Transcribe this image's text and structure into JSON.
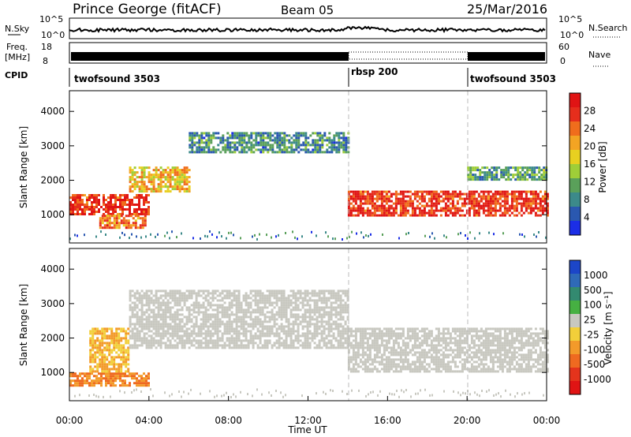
{
  "header": {
    "title": "Prince George (fitACF)",
    "beam": "Beam 05",
    "date": "25/Mar/2016"
  },
  "top_panels": {
    "nsky_label": "N.Sky",
    "nsky_ticks": [
      "10^5",
      "10^0"
    ],
    "nsearch_label": "N.Search",
    "nsearch_ticks": [
      "10^5",
      "10^0"
    ],
    "freq_label": "Freq.",
    "freq_unit": "[MHz]",
    "freq_ticks": [
      "18",
      "8"
    ],
    "nave_label": "Nave",
    "nave_ticks": [
      "60",
      "0"
    ],
    "cpid_label": "CPID",
    "cpid_segments": [
      {
        "label": "twofsound 3503",
        "start_hour": 0,
        "end_hour": 14
      },
      {
        "label": "rbsp 200",
        "start_hour": 14,
        "end_hour": 20
      },
      {
        "label": "twofsound 3503",
        "start_hour": 20,
        "end_hour": 24
      }
    ]
  },
  "colorbars": {
    "power": {
      "label": "Power [dB]",
      "ticks": [
        "4",
        "8",
        "12",
        "16",
        "20",
        "24",
        "28"
      ],
      "colors": [
        "#1b2ee6",
        "#2a58b0",
        "#3c8a8a",
        "#5aa05a",
        "#9fce38",
        "#e8d020",
        "#f3a423",
        "#f06d1c",
        "#e62e1c",
        "#e01414"
      ]
    },
    "velocity": {
      "label": "Velocity [m s⁻¹]",
      "ticks": [
        "1000",
        "500",
        "100",
        "25",
        "-25",
        "-100",
        "-500",
        "-1000"
      ],
      "colors": [
        "#1c46c8",
        "#2f6ab8",
        "#338a70",
        "#46b042",
        "#c8c8c0",
        "#f2cf3a",
        "#f39a2a",
        "#ef6a20",
        "#e4341c",
        "#e01414"
      ]
    }
  },
  "chart_data": [
    {
      "type": "heatmap",
      "panel": "power",
      "ylabel": "Slant Range [km]",
      "xlabel": "Time UT",
      "xlim": [
        "00:00",
        "24:00"
      ],
      "ylim": [
        180,
        4600
      ],
      "x_ticks": [
        "00:00",
        "04:00",
        "08:00",
        "12:00",
        "16:00",
        "20:00",
        "00:00"
      ],
      "y_ticks": [
        1000,
        2000,
        3000,
        4000
      ],
      "color_scale_db": [
        0,
        30
      ],
      "regions": [
        {
          "t0": 0.0,
          "t1": 4.0,
          "r0": 1000,
          "r1": 1600,
          "value": 26
        },
        {
          "t0": 1.5,
          "t1": 3.8,
          "r0": 650,
          "r1": 1000,
          "value": 22
        },
        {
          "t0": 3.0,
          "t1": 6.0,
          "r0": 1700,
          "r1": 2400,
          "value": 18
        },
        {
          "t0": 6.0,
          "t1": 14.0,
          "r0": 2800,
          "r1": 3400,
          "value": 8
        },
        {
          "t0": 14.0,
          "t1": 24.0,
          "r0": 1000,
          "r1": 1700,
          "value": 26
        },
        {
          "t0": 20.0,
          "t1": 24.0,
          "r0": 2000,
          "r1": 2400,
          "value": 10
        }
      ]
    },
    {
      "type": "heatmap",
      "panel": "velocity",
      "ylabel": "Slant Range [km]",
      "xlabel": "Time UT",
      "xlim": [
        "00:00",
        "24:00"
      ],
      "ylim": [
        180,
        4600
      ],
      "x_ticks": [
        "00:00",
        "04:00",
        "08:00",
        "12:00",
        "16:00",
        "20:00",
        "00:00"
      ],
      "y_ticks": [
        1000,
        2000,
        3000,
        4000
      ],
      "color_scale_ms": [
        -1000,
        1000
      ],
      "regions": [
        {
          "t0": 0.0,
          "t1": 4.0,
          "r0": 600,
          "r1": 1000,
          "value": -400
        },
        {
          "t0": 1.0,
          "t1": 3.0,
          "r0": 1000,
          "r1": 2300,
          "value": -200
        },
        {
          "t0": 3.0,
          "t1": 14.0,
          "r0": 1700,
          "r1": 3400,
          "value": 0
        },
        {
          "t0": 14.0,
          "t1": 24.0,
          "r0": 1000,
          "r1": 2300,
          "value": 0
        }
      ]
    }
  ]
}
